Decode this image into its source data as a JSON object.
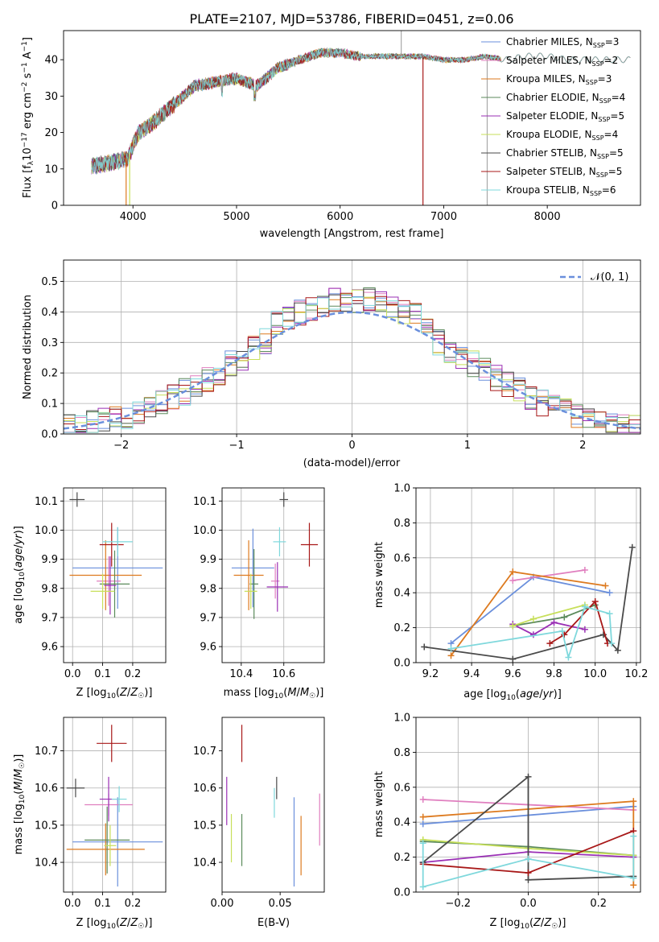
{
  "figure": {
    "title": "PLATE=2107, MJD=53786, FIBERID=0451, z=0.06"
  },
  "colors": {
    "blue": "#6a8fdc",
    "pink": "#e07fbf",
    "orange": "#dd7a1f",
    "green": "#5b8a5b",
    "purple": "#9a2fb5",
    "yellow": "#c7df5a",
    "dark": "#4a4a4a",
    "red": "#a81818",
    "cyan": "#7fd8dc",
    "grey_obs": "#a8a8a8"
  },
  "models": [
    {
      "name": "Chabrier MILES",
      "nssp": "3",
      "color": "#6a8fdc"
    },
    {
      "name": "Salpeter MILES",
      "nssp": "2",
      "color": "#e07fbf"
    },
    {
      "name": "Kroupa MILES",
      "nssp": "3",
      "color": "#dd7a1f"
    },
    {
      "name": "Chabrier ELODIE",
      "nssp": "4",
      "color": "#5b8a5b"
    },
    {
      "name": "Salpeter ELODIE",
      "nssp": "5",
      "color": "#9a2fb5"
    },
    {
      "name": "Kroupa ELODIE",
      "nssp": "4",
      "color": "#c7df5a"
    },
    {
      "name": "Chabrier STELIB",
      "nssp": "5",
      "color": "#4a4a4a"
    },
    {
      "name": "Salpeter STELIB",
      "nssp": "5",
      "color": "#a81818"
    },
    {
      "name": "Kroupa STELIB",
      "nssp": "6",
      "color": "#7fd8dc"
    }
  ],
  "chart_data": [
    {
      "id": "spectrum",
      "type": "line",
      "title": "PLATE=2107, MJD=53786, FIBERID=0451, z=0.06",
      "xlabel": "wavelength [Angstrom, rest frame]",
      "ylabel": "Flux [fλ10⁻¹⁷ erg cm⁻² s⁻¹ A⁻¹]",
      "xlim": [
        3330,
        8900
      ],
      "ylim": [
        0,
        48
      ],
      "xticks": [
        4000,
        5000,
        6000,
        7000,
        8000
      ],
      "yticks": [
        0,
        10,
        20,
        30,
        40
      ],
      "grid": false,
      "legend": "upper right",
      "continuum": {
        "x": [
          3600,
          3800,
          3950,
          4050,
          4200,
          4400,
          4600,
          4800,
          5000,
          5200,
          5400,
          5600,
          5800,
          6000,
          6200,
          6400,
          6600,
          6800,
          7000,
          7200,
          7400,
          7600,
          7800,
          8000,
          8200,
          8400,
          8600,
          8800
        ],
        "y": [
          11,
          12,
          13,
          20,
          23,
          28,
          33,
          34,
          35,
          33,
          38,
          40,
          42,
          42,
          41,
          41,
          41,
          41,
          40,
          40,
          41,
          40,
          41,
          41,
          40,
          40,
          40,
          40
        ]
      },
      "features": [
        {
          "x": 3934,
          "y": 0
        },
        {
          "x": 3968,
          "y": 0
        },
        {
          "x": 6800,
          "y": 0
        },
        {
          "x": 7420,
          "y": 0
        },
        {
          "x": 6590,
          "y": 48
        }
      ]
    },
    {
      "id": "residual-histogram",
      "type": "histogram",
      "xlabel": "(data-model)/error",
      "ylabel": "Normed distribution",
      "xlim": [
        -2.5,
        2.5
      ],
      "ylim": [
        0,
        0.57
      ],
      "xticks": [
        -2,
        -1,
        0,
        1,
        2
      ],
      "yticks": [
        0.0,
        0.1,
        0.2,
        0.3,
        0.4,
        0.5
      ],
      "grid": true,
      "legend": "upper right",
      "reference_label": "𝒩(0, 1)",
      "bin_width": 0.1,
      "bin_range": [
        -2.5,
        2.5
      ]
    },
    {
      "id": "age-vs-z",
      "type": "errorbar",
      "xlabel": "Z [log₁₀(Z/Z☉)]",
      "ylabel": "age  [log₁₀(age/yr)]",
      "xlim": [
        -0.03,
        0.31
      ],
      "ylim": [
        9.545,
        10.145
      ],
      "xticks": [
        0.0,
        0.1,
        0.2
      ],
      "yticks": [
        9.6,
        9.7,
        9.8,
        9.9,
        10.0,
        10.1
      ],
      "grid": true,
      "points": [
        {
          "series": "Chabrier MILES",
          "x": 0.15,
          "xerr": 0.15,
          "y": 9.87,
          "yerr": 0.14
        },
        {
          "series": "Salpeter MILES",
          "x": 0.12,
          "xerr": 0.04,
          "y": 9.825,
          "yerr": 0.085
        },
        {
          "series": "Kroupa MILES",
          "x": 0.11,
          "xerr": 0.12,
          "y": 9.845,
          "yerr": 0.12
        },
        {
          "series": "Chabrier ELODIE",
          "x": 0.14,
          "xerr": 0.05,
          "y": 9.815,
          "yerr": 0.115
        },
        {
          "series": "Salpeter ELODIE",
          "x": 0.125,
          "xerr": 0.02,
          "y": 9.81,
          "yerr": 0.1
        },
        {
          "series": "Kroupa ELODIE",
          "x": 0.1,
          "xerr": 0.04,
          "y": 9.79,
          "yerr": 0.06
        },
        {
          "series": "Chabrier STELIB",
          "x": 0.015,
          "xerr": 0.025,
          "y": 10.105,
          "yerr": 0.025
        },
        {
          "series": "Salpeter STELIB",
          "x": 0.13,
          "xerr": 0.04,
          "y": 9.95,
          "yerr": 0.075
        },
        {
          "series": "Kroupa STELIB",
          "x": 0.15,
          "xerr": 0.05,
          "y": 9.96,
          "yerr": 0.05
        }
      ]
    },
    {
      "id": "age-vs-mass",
      "type": "errorbar",
      "xlabel": "mass [log₁₀(M/M☉)]",
      "ylabel": "",
      "xlim": [
        10.31,
        10.79
      ],
      "ylim": [
        9.545,
        10.145
      ],
      "xticks": [
        10.4,
        10.6
      ],
      "yticks": [
        9.6,
        9.7,
        9.8,
        9.9,
        10.0,
        10.1
      ],
      "grid": true,
      "points": [
        {
          "series": "Chabrier MILES",
          "x": 10.455,
          "xerr": 0.1,
          "y": 9.87,
          "yerr": 0.135
        },
        {
          "series": "Salpeter MILES",
          "x": 10.56,
          "xerr": 0.02,
          "y": 9.825,
          "yerr": 0.06
        },
        {
          "series": "Kroupa MILES",
          "x": 10.435,
          "xerr": 0.07,
          "y": 9.845,
          "yerr": 0.12
        },
        {
          "series": "Chabrier ELODIE",
          "x": 10.46,
          "xerr": 0.02,
          "y": 9.815,
          "yerr": 0.12
        },
        {
          "series": "Salpeter ELODIE",
          "x": 10.57,
          "xerr": 0.05,
          "y": 9.805,
          "yerr": 0.085
        },
        {
          "series": "Kroupa ELODIE",
          "x": 10.445,
          "xerr": 0.03,
          "y": 9.79,
          "yerr": 0.06
        },
        {
          "series": "Chabrier STELIB",
          "x": 10.6,
          "xerr": 0.02,
          "y": 10.105,
          "yerr": 0.025
        },
        {
          "series": "Salpeter STELIB",
          "x": 10.72,
          "xerr": 0.04,
          "y": 9.95,
          "yerr": 0.075
        },
        {
          "series": "Kroupa STELIB",
          "x": 10.58,
          "xerr": 0.03,
          "y": 9.96,
          "yerr": 0.05
        }
      ]
    },
    {
      "id": "mass-weight-vs-age",
      "type": "line",
      "xlabel": "age  [log₁₀(age/yr)]",
      "ylabel": "mass weight",
      "xlim": [
        9.13,
        10.22
      ],
      "ylim": [
        0,
        1.0
      ],
      "xticks": [
        9.2,
        9.4,
        9.6,
        9.8,
        10.0,
        10.2
      ],
      "yticks": [
        0.0,
        0.2,
        0.4,
        0.6,
        0.8,
        1.0
      ],
      "grid": true,
      "series": [
        {
          "name": "Chabrier MILES",
          "x": [
            9.3,
            9.7,
            10.07
          ],
          "y": [
            0.11,
            0.49,
            0.4
          ]
        },
        {
          "name": "Salpeter MILES",
          "x": [
            9.6,
            9.95
          ],
          "y": [
            0.47,
            0.53
          ]
        },
        {
          "name": "Kroupa MILES",
          "x": [
            9.3,
            9.6,
            10.05
          ],
          "y": [
            0.04,
            0.52,
            0.44
          ]
        },
        {
          "name": "Chabrier ELODIE",
          "x": [
            9.6,
            9.85,
            10.0
          ],
          "y": [
            0.21,
            0.26,
            0.33
          ]
        },
        {
          "name": "Salpeter ELODIE",
          "x": [
            9.6,
            9.7,
            9.8,
            9.95
          ],
          "y": [
            0.22,
            0.16,
            0.23,
            0.19
          ]
        },
        {
          "name": "Kroupa ELODIE",
          "x": [
            9.6,
            9.7,
            9.95
          ],
          "y": [
            0.21,
            0.25,
            0.33
          ]
        },
        {
          "name": "Chabrier STELIB",
          "x": [
            9.17,
            9.6,
            10.04,
            10.11,
            10.18
          ],
          "y": [
            0.09,
            0.02,
            0.16,
            0.07,
            0.66
          ]
        },
        {
          "name": "Salpeter STELIB",
          "x": [
            9.78,
            9.85,
            10.0,
            10.06
          ],
          "y": [
            0.11,
            0.16,
            0.35,
            0.11
          ]
        },
        {
          "name": "Kroupa STELIB",
          "x": [
            9.3,
            9.84,
            9.87,
            9.95,
            10.07,
            10.08
          ],
          "y": [
            0.08,
            0.18,
            0.03,
            0.32,
            0.28,
            0.11
          ]
        }
      ]
    },
    {
      "id": "mass-vs-z",
      "type": "errorbar",
      "xlabel": "Z [log₁₀(Z/Z☉)]",
      "ylabel": "mass [log₁₀(M/M☉)]",
      "xlim": [
        -0.03,
        0.31
      ],
      "ylim": [
        10.32,
        10.79
      ],
      "xticks": [
        0.0,
        0.1,
        0.2
      ],
      "yticks": [
        10.4,
        10.5,
        10.6,
        10.7
      ],
      "grid": true,
      "points": [
        {
          "series": "Chabrier MILES",
          "x": 0.15,
          "xerr": 0.15,
          "y": 10.455,
          "yerr": 0.12
        },
        {
          "series": "Salpeter MILES",
          "x": 0.12,
          "xerr": 0.08,
          "y": 10.555,
          "yerr": 0.03
        },
        {
          "series": "Kroupa MILES",
          "x": 0.11,
          "xerr": 0.13,
          "y": 10.435,
          "yerr": 0.07
        },
        {
          "series": "Chabrier ELODIE",
          "x": 0.115,
          "xerr": 0.075,
          "y": 10.46,
          "yerr": 0.09
        },
        {
          "series": "Salpeter ELODIE",
          "x": 0.12,
          "xerr": 0.03,
          "y": 10.57,
          "yerr": 0.06
        },
        {
          "series": "Kroupa ELODIE",
          "x": 0.125,
          "xerr": 0.02,
          "y": 10.445,
          "yerr": 0.055
        },
        {
          "series": "Chabrier STELIB",
          "x": 0.01,
          "xerr": 0.03,
          "y": 10.6,
          "yerr": 0.025
        },
        {
          "series": "Salpeter STELIB",
          "x": 0.13,
          "xerr": 0.05,
          "y": 10.72,
          "yerr": 0.05
        },
        {
          "series": "Kroupa STELIB",
          "x": 0.155,
          "xerr": 0.025,
          "y": 10.57,
          "yerr": 0.035
        }
      ]
    },
    {
      "id": "mass-vs-ebv",
      "type": "errorbar",
      "xlabel": "E(B-V)",
      "ylabel": "",
      "xlim": [
        0.0,
        0.088
      ],
      "ylim": [
        10.32,
        10.79
      ],
      "xticks": [
        0.0,
        0.05
      ],
      "yticks": [
        10.4,
        10.5,
        10.6,
        10.7
      ],
      "grid": false,
      "points": [
        {
          "series": "Chabrier MILES",
          "x": 0.062,
          "xerr": 0,
          "y": 10.455,
          "yerr": 0.12
        },
        {
          "series": "Salpeter MILES",
          "x": 0.084,
          "xerr": 0,
          "y": 10.515,
          "yerr": 0.07
        },
        {
          "series": "Kroupa MILES",
          "x": 0.068,
          "xerr": 0,
          "y": 10.445,
          "yerr": 0.08
        },
        {
          "series": "Chabrier ELODIE",
          "x": 0.017,
          "xerr": 0,
          "y": 10.46,
          "yerr": 0.07
        },
        {
          "series": "Salpeter ELODIE",
          "x": 0.004,
          "xerr": 0,
          "y": 10.565,
          "yerr": 0.065
        },
        {
          "series": "Kroupa ELODIE",
          "x": 0.008,
          "xerr": 0,
          "y": 10.465,
          "yerr": 0.065
        },
        {
          "series": "Chabrier STELIB",
          "x": 0.047,
          "xerr": 0,
          "y": 10.6,
          "yerr": 0.03
        },
        {
          "series": "Salpeter STELIB",
          "x": 0.017,
          "xerr": 0,
          "y": 10.72,
          "yerr": 0.05
        },
        {
          "series": "Kroupa STELIB",
          "x": 0.045,
          "xerr": 0,
          "y": 10.56,
          "yerr": 0.04
        }
      ]
    },
    {
      "id": "mass-weight-vs-z",
      "type": "line",
      "xlabel": "Z [log₁₀(Z/Z☉)]",
      "ylabel": "mass weight",
      "xlim": [
        -0.32,
        0.32
      ],
      "ylim": [
        0,
        1.0
      ],
      "xticks": [
        -0.2,
        0.0,
        0.2
      ],
      "yticks": [
        0.0,
        0.2,
        0.4,
        0.6,
        0.8,
        1.0
      ],
      "grid": true,
      "series": [
        {
          "name": "Chabrier MILES",
          "x": [
            -0.3,
            0.3
          ],
          "y": [
            0.39,
            0.49
          ]
        },
        {
          "name": "Salpeter MILES",
          "x": [
            -0.3,
            0.3
          ],
          "y": [
            0.53,
            0.47
          ]
        },
        {
          "name": "Kroupa MILES",
          "x": [
            -0.3,
            0.3,
            0.3
          ],
          "y": [
            0.43,
            0.52,
            0.04
          ]
        },
        {
          "name": "Chabrier ELODIE",
          "x": [
            -0.3,
            0.0,
            0.3
          ],
          "y": [
            0.29,
            0.26,
            0.21
          ]
        },
        {
          "name": "Salpeter ELODIE",
          "x": [
            -0.3,
            0.0,
            0.3
          ],
          "y": [
            0.17,
            0.23,
            0.2
          ]
        },
        {
          "name": "Kroupa ELODIE",
          "x": [
            -0.3,
            0.0,
            0.3
          ],
          "y": [
            0.3,
            0.25,
            0.21
          ]
        },
        {
          "name": "Chabrier STELIB",
          "x": [
            -0.3,
            0.0,
            0.0,
            0.3
          ],
          "y": [
            0.17,
            0.66,
            0.07,
            0.09
          ]
        },
        {
          "name": "Salpeter STELIB",
          "x": [
            -0.3,
            0.0,
            0.3
          ],
          "y": [
            0.16,
            0.11,
            0.35
          ]
        },
        {
          "name": "Kroupa STELIB",
          "x": [
            -0.3,
            -0.3,
            0.0,
            0.3,
            0.3
          ],
          "y": [
            0.28,
            0.03,
            0.19,
            0.08,
            0.32
          ]
        }
      ]
    }
  ]
}
